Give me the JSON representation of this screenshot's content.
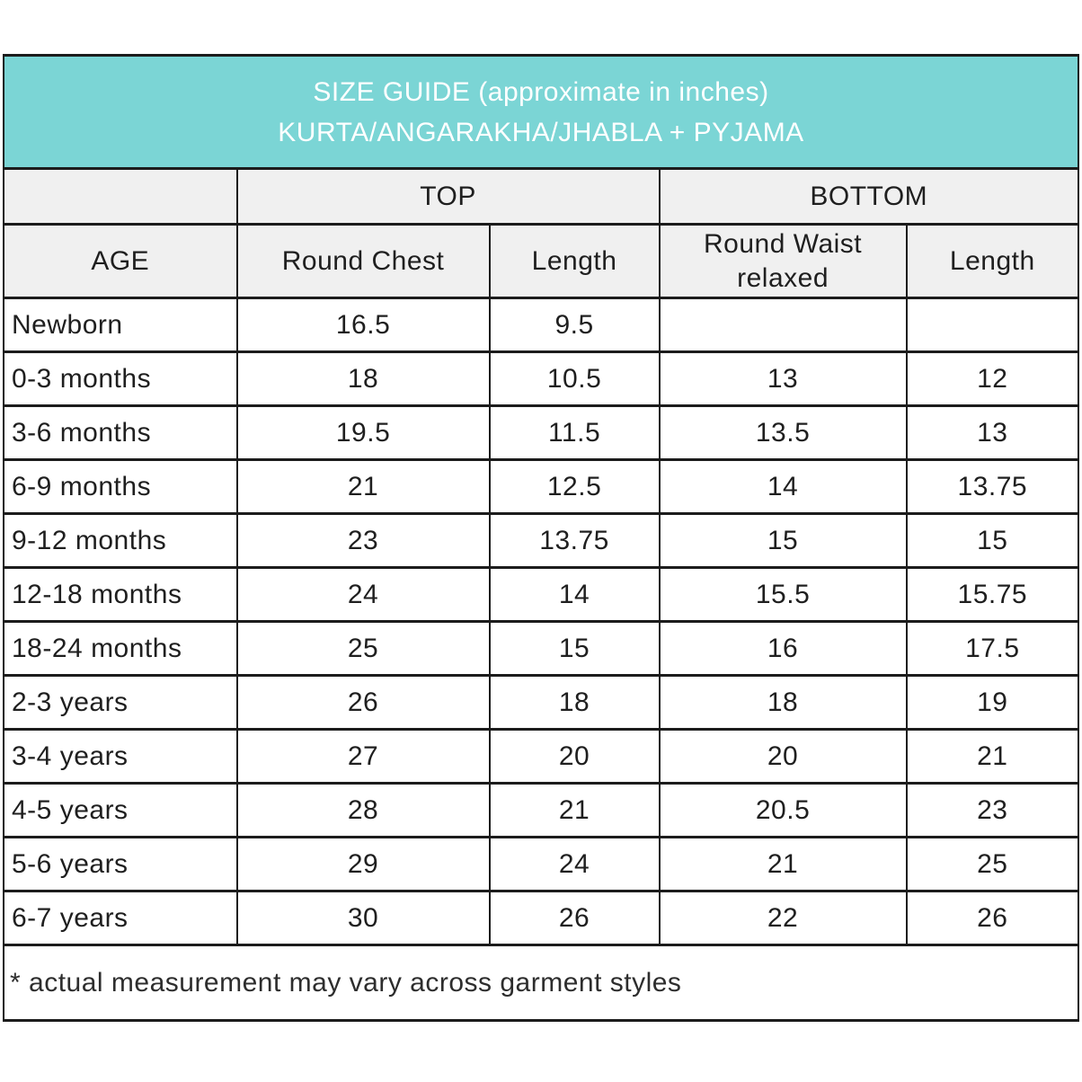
{
  "banner": {
    "line1": "SIZE GUIDE (approximate in inches)",
    "line2": "KURTA/ANGARAKHA/JHABLA + PYJAMA"
  },
  "table": {
    "group_headers": {
      "top": "TOP",
      "bottom": "BOTTOM"
    },
    "columns": [
      "AGE",
      "Round Chest",
      "Length",
      "Round Waist relaxed",
      "Length"
    ],
    "rows": [
      [
        "Newborn",
        "16.5",
        "9.5",
        "",
        ""
      ],
      [
        "0-3 months",
        "18",
        "10.5",
        "13",
        "12"
      ],
      [
        "3-6 months",
        "19.5",
        "11.5",
        "13.5",
        "13"
      ],
      [
        "6-9 months",
        "21",
        "12.5",
        "14",
        "13.75"
      ],
      [
        "9-12 months",
        "23",
        "13.75",
        "15",
        "15"
      ],
      [
        "12-18 months",
        "24",
        "14",
        "15.5",
        "15.75"
      ],
      [
        "18-24 months",
        "25",
        "15",
        "16",
        "17.5"
      ],
      [
        "2-3 years",
        "26",
        "18",
        "18",
        "19"
      ],
      [
        "3-4 years",
        "27",
        "20",
        "20",
        "21"
      ],
      [
        "4-5 years",
        "28",
        "21",
        "20.5",
        "23"
      ],
      [
        "5-6 years",
        "29",
        "24",
        "21",
        "25"
      ],
      [
        "6-7 years",
        "30",
        "26",
        "22",
        "26"
      ]
    ]
  },
  "footnote": "* actual measurement may vary across garment styles",
  "colors": {
    "banner_bg": "#7bd5d5",
    "banner_text": "#ffffff",
    "header_bg": "#f0f0f0",
    "border": "#1c1c1c",
    "text": "#1f1f1f"
  }
}
